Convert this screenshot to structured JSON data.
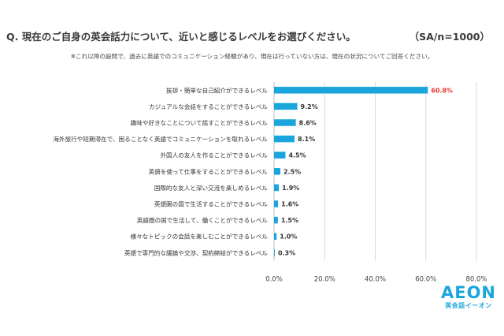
{
  "header": {
    "question": "Q. 現在のご自身の英会話力について、近いと感じるレベルをお選びください。",
    "sample": "（SA/n=1000）",
    "note": "※これ以降の設問で、過去に英語でのコミュニケーション経験があり、現在は行っていない方は、現在の状況についてご回答ください。"
  },
  "chart_data": {
    "type": "bar",
    "orientation": "horizontal",
    "categories": [
      "挨拶・簡単な自己紹介ができるレベル",
      "カジュアルな会話をすることができるレベル",
      "趣味や好きなことについて話すことができるレベル",
      "海外旅行や短期滞在で、困ることなく英語でコミュニケーションを取れるレベル",
      "外国人の友人を作ることができるレベル",
      "英語を使って仕事をすることができるレベル",
      "国際的な友人と深い交流を楽しめるレベル",
      "英語圏の国で生活することができるレベル",
      "英語圏の国で生活して、働くことができるレベル",
      "様々なトピックの会話を楽しむことができるレベル",
      "英語で専門的な議論や交渉、契約締結ができるレベル"
    ],
    "values": [
      60.8,
      9.2,
      8.6,
      8.1,
      4.5,
      2.5,
      1.9,
      1.6,
      1.5,
      1.0,
      0.3
    ],
    "value_labels": [
      "60.8%",
      "9.2%",
      "8.6%",
      "8.1%",
      "4.5%",
      "2.5%",
      "1.9%",
      "1.6%",
      "1.5%",
      "1.0%",
      "0.3%"
    ],
    "xlim": [
      0,
      80
    ],
    "ticks": [
      0,
      20,
      40,
      60,
      80
    ],
    "tick_labels": [
      "0.0%",
      "20.0%",
      "40.0%",
      "60.0%",
      "80.0%"
    ],
    "grid": true,
    "colors": {
      "bar": "#1aa5dc",
      "highlight_label": "#e8352e",
      "label": "#333333",
      "grid": "#d9d9d9"
    }
  },
  "brand": {
    "logo_text": "AEON",
    "logo_sub": "英会話イーオン"
  }
}
